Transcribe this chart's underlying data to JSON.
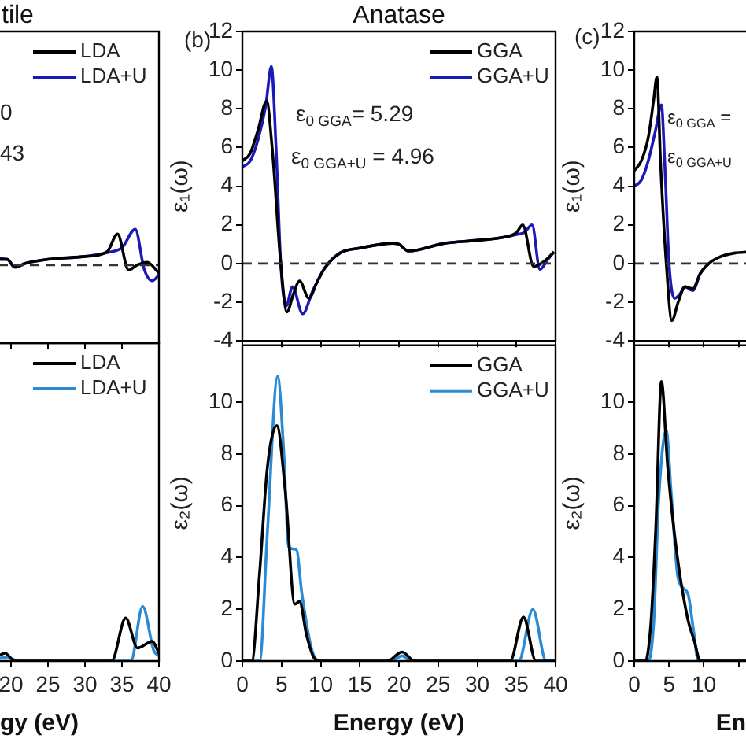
{
  "chart_data": [
    {
      "type": "line",
      "title": "tile",
      "annotations": [
        "0",
        "43"
      ],
      "xlim": [
        18.3,
        40
      ],
      "xticks": [
        20,
        25,
        30,
        35,
        40
      ],
      "ylim": [
        -4,
        12
      ],
      "yticks": [
        -4,
        -2,
        0,
        2,
        4,
        6,
        8,
        10,
        12
      ],
      "tick_labels": false,
      "legend": "top right",
      "ref_lines": [
        {
          "axis": "y",
          "value": 0,
          "color": "#333333",
          "line_style": "dashed"
        }
      ],
      "series": [
        {
          "name": "LDA",
          "color": "#000000",
          "x": [
            18.3,
            19.5,
            20.5,
            22,
            25,
            30,
            33,
            34.4,
            35.9,
            37,
            38.4,
            40
          ],
          "values": [
            0.3,
            0.3,
            -0.1,
            0.1,
            0.3,
            0.45,
            0.7,
            1.6,
            -0.25,
            0,
            0.15,
            -0.4
          ]
        },
        {
          "name": "LDA+U",
          "color": "#1a1ab8",
          "x": [
            18.3,
            19.5,
            20.5,
            22,
            25,
            30,
            33,
            35,
            36.8,
            38,
            39.1,
            40
          ],
          "values": [
            0.35,
            0.3,
            -0.1,
            0.1,
            0.3,
            0.45,
            0.65,
            0.9,
            1.85,
            -0.2,
            -0.8,
            -0.5
          ]
        }
      ]
    },
    {
      "type": "line",
      "title": "Anatase",
      "ylabel": "ε₁(ω)",
      "annotations": [
        "(b)",
        "ε$_{0 GGA}$= 5.29",
        "ε$_{0 GGA+U}$ = 4.96"
      ],
      "xlim": [
        0,
        40
      ],
      "xticks": [
        0,
        5,
        10,
        15,
        20,
        25,
        30,
        35,
        40
      ],
      "ylim": [
        -4,
        12
      ],
      "yticks": [
        -4,
        -2,
        0,
        2,
        4,
        6,
        8,
        10,
        12
      ],
      "tick_labels": "y",
      "legend": "top right",
      "ref_lines": [
        {
          "axis": "y",
          "value": 0,
          "color": "#333333",
          "line_style": "dashed"
        }
      ],
      "series": [
        {
          "name": "GGA",
          "color": "#000000",
          "x": [
            0,
            1,
            2,
            3.1,
            3.8,
            4.9,
            5.7,
            6.5,
            7.3,
            8.5,
            9.5,
            10.5,
            12.5,
            15,
            19.2,
            20,
            21.2,
            25.8,
            30,
            33.2,
            35,
            35.8,
            37.2,
            38.5,
            39.8
          ],
          "values": [
            5.3,
            5.7,
            6.9,
            8.4,
            6,
            0,
            -2.5,
            -1.6,
            -0.9,
            -1.8,
            -1.0,
            -0.25,
            0.55,
            0.8,
            1.05,
            1.0,
            0.65,
            1.05,
            1.2,
            1.35,
            1.6,
            2.0,
            -0.15,
            0.1,
            0.6
          ]
        },
        {
          "name": "GGA+U",
          "color": "#1a1ab8",
          "x": [
            0,
            1,
            2,
            3,
            3.7,
            4.3,
            4.9,
            5.6,
            6.4,
            7.7,
            9,
            10.5,
            12.5,
            15,
            19.2,
            20,
            21.2,
            25.8,
            30,
            33.2,
            35,
            36,
            37,
            38,
            39,
            39.8
          ],
          "values": [
            5.0,
            5.3,
            6.4,
            8.2,
            10.2,
            6,
            0,
            -2.2,
            -1.2,
            -2.6,
            -1.4,
            -0.25,
            0.55,
            0.8,
            1.05,
            1.0,
            0.65,
            1.05,
            1.2,
            1.35,
            1.5,
            1.6,
            2.0,
            -0.3,
            0.2,
            0.6
          ]
        }
      ]
    },
    {
      "type": "line",
      "ylabel": "ε₁(ω)",
      "annotations": [
        "(c)",
        "ε$_{0 GGA}$ =",
        "ε$_{0 GGA+U}$"
      ],
      "xlim": [
        0,
        16.5
      ],
      "xticks": [
        0,
        5,
        10,
        15
      ],
      "ylim": [
        -4,
        12
      ],
      "yticks": [
        -4,
        -2,
        0,
        2,
        4,
        6,
        8,
        10,
        12
      ],
      "tick_labels": "y",
      "ref_lines": [
        {
          "axis": "y",
          "value": 0,
          "color": "#333333",
          "line_style": "dashed"
        }
      ],
      "series": [
        {
          "color": "#000000",
          "x": [
            0,
            1,
            2,
            2.8,
            3.25,
            3.8,
            4.6,
            5.4,
            6.3,
            7.3,
            8.4,
            9.5,
            10.7,
            12,
            14.5,
            16.5
          ],
          "values": [
            4.8,
            5.3,
            6.5,
            8.5,
            9.65,
            5,
            0,
            -2.95,
            -2,
            -1.2,
            -1.3,
            -0.5,
            0,
            0.3,
            0.55,
            0.6
          ]
        },
        {
          "color": "#1a1ab8",
          "x": [
            0,
            1,
            2,
            3,
            3.9,
            4.4,
            5.0,
            5.8,
            6.5,
            7.3,
            8.4,
            9.5,
            10.7
          ],
          "values": [
            4.0,
            4.3,
            5.3,
            6.8,
            8.2,
            5,
            0,
            -1.8,
            -1.6,
            -1.2,
            -1.4,
            -0.5,
            0
          ]
        }
      ]
    },
    {
      "type": "line",
      "xlabel": "gy (eV)",
      "xlim": [
        18.3,
        40
      ],
      "xticks": [
        20,
        25,
        30,
        35,
        40
      ],
      "ylim": [
        0,
        12.2
      ],
      "yticks": [
        0,
        2,
        4,
        6,
        8,
        10
      ],
      "tick_labels": "x",
      "legend": "top right",
      "series": [
        {
          "name": "LDA",
          "color": "#000000",
          "x": [
            18.3,
            19.2,
            20.5,
            22,
            33.6,
            35.5,
            37.1,
            39.1,
            40
          ],
          "values": [
            0.2,
            0.3,
            0,
            0,
            0,
            1.65,
            0.5,
            0.75,
            0.3
          ]
        },
        {
          "name": "LDA+U",
          "color": "#2a8ad4",
          "x": [
            18.3,
            19.5,
            21,
            36.2,
            37.8,
            39.3,
            40
          ],
          "values": [
            0.1,
            0.15,
            0,
            0,
            2.1,
            0.4,
            0.2
          ]
        }
      ]
    },
    {
      "type": "line",
      "xlabel": "Energy (eV)",
      "ylabel": "ε₂(ω)",
      "xlim": [
        0,
        40
      ],
      "xticks": [
        0,
        5,
        10,
        15,
        20,
        25,
        30,
        35,
        40
      ],
      "ylim": [
        0,
        12.2
      ],
      "yticks": [
        0,
        2,
        4,
        6,
        8,
        10
      ],
      "legend": "top right",
      "series": [
        {
          "name": "GGA",
          "color": "#000000",
          "x": [
            0,
            1.2,
            2.2,
            3.2,
            4.4,
            5.5,
            6.7,
            7.3,
            8.2,
            9.2,
            10,
            18.5,
            20.4,
            22,
            30,
            34.2,
            35.9,
            37.5,
            40
          ],
          "values": [
            0,
            0,
            3.4,
            7.5,
            9.1,
            6.5,
            2.2,
            2.3,
            1.0,
            0.1,
            0,
            0,
            0.35,
            0,
            0,
            0,
            1.7,
            0,
            0
          ]
        },
        {
          "name": "GGA+U",
          "color": "#2a8ad4",
          "x": [
            0,
            2.2,
            3.2,
            4.5,
            5.3,
            5.9,
            6.9,
            7.6,
            8.9,
            10,
            19,
            20.4,
            21.5,
            30,
            35.3,
            37.1,
            38.8,
            40
          ],
          "values": [
            0,
            0,
            5.0,
            11.0,
            8.0,
            4.4,
            4.3,
            2.6,
            0.4,
            0,
            0,
            0.2,
            0,
            0,
            0,
            2.0,
            0,
            0
          ]
        }
      ]
    },
    {
      "type": "line",
      "xlabel": "En",
      "ylabel": "ε₂(ω)",
      "xlim": [
        0,
        16.5
      ],
      "xticks": [
        0,
        5,
        10,
        {
          "value": 15,
          "label": null
        }
      ],
      "ylim": [
        0,
        12.2
      ],
      "yticks": [
        0,
        2,
        4,
        6,
        8,
        10
      ],
      "series": [
        {
          "color": "#000000",
          "x": [
            0,
            1.6,
            2.4,
            3.1,
            3.9,
            4.8,
            6.1,
            7.7,
            8.6,
            9.5,
            16.5
          ],
          "values": [
            0,
            0,
            1.5,
            5.2,
            10.8,
            7.5,
            4.2,
            1.6,
            0.8,
            0,
            0
          ]
        },
        {
          "color": "#2a8ad4",
          "x": [
            0,
            2.0,
            2.8,
            3.5,
            4.6,
            5.3,
            6.3,
            7.7,
            8.5,
            9.2,
            16.5
          ],
          "values": [
            0,
            0,
            1.5,
            6.2,
            8.9,
            6.5,
            3.2,
            2.6,
            1.2,
            0,
            0
          ]
        }
      ]
    }
  ]
}
